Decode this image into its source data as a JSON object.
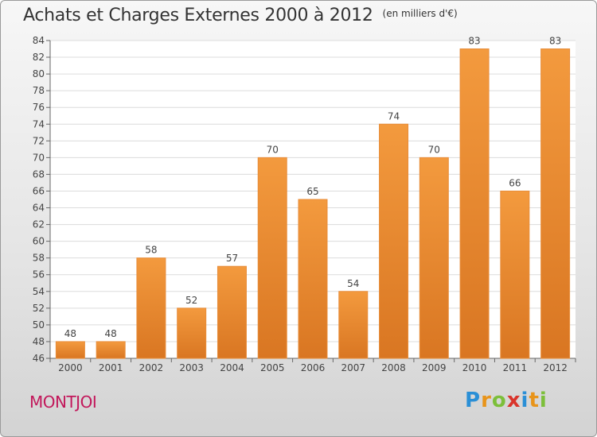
{
  "header": {
    "title": "Achats et Charges Externes 2000 à 2012",
    "subtitle": "(en milliers d'€)"
  },
  "footer": {
    "commune": "MONTJOI",
    "logo": {
      "letters": [
        "P",
        "r",
        "o",
        "x",
        "i",
        "t",
        "i"
      ],
      "colors": [
        "#2a8fd6",
        "#e8941a",
        "#7cbf3a",
        "#d9342b",
        "#2a8fd6",
        "#e8941a",
        "#7cbf3a"
      ]
    }
  },
  "colors": {
    "bar": "#f39a3e",
    "bar_dark": "#d97622",
    "commune": "#c2185b"
  },
  "chart_data": {
    "type": "bar",
    "title": "Achats et Charges Externes 2000 à 2012",
    "subtitle": "(en milliers d'€)",
    "categories": [
      "2000",
      "2001",
      "2002",
      "2003",
      "2004",
      "2005",
      "2006",
      "2007",
      "2008",
      "2009",
      "2010",
      "2011",
      "2012"
    ],
    "values": [
      48,
      48,
      58,
      52,
      57,
      70,
      65,
      54,
      74,
      70,
      83,
      66,
      83
    ],
    "ylim": [
      46,
      84
    ],
    "yticks": [
      46,
      48,
      50,
      52,
      54,
      56,
      58,
      60,
      62,
      64,
      66,
      68,
      70,
      72,
      74,
      76,
      78,
      80,
      82,
      84
    ],
    "grid": true,
    "xlabel": "",
    "ylabel": ""
  }
}
